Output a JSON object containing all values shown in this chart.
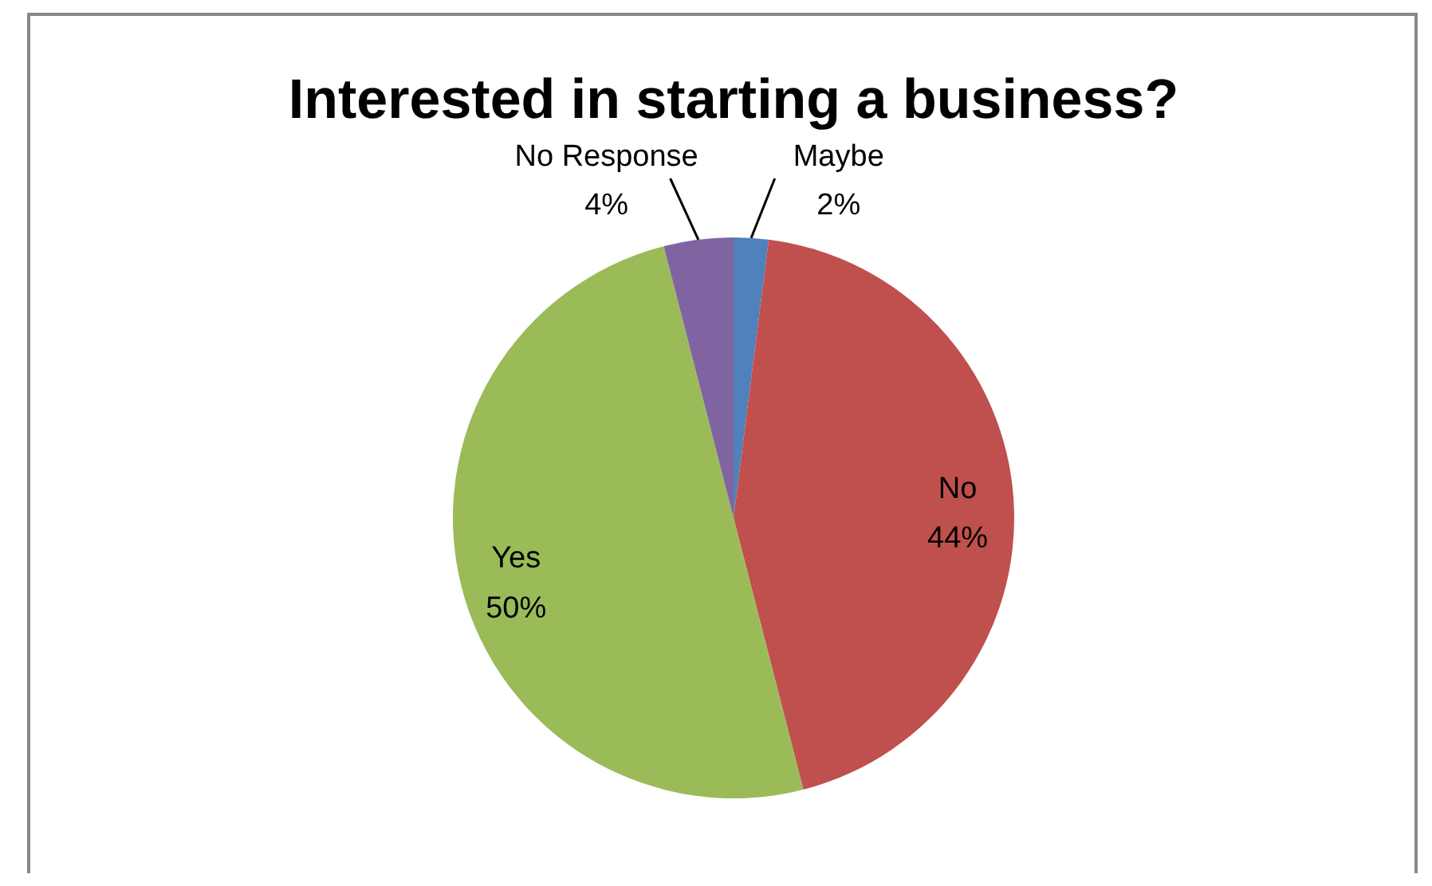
{
  "chart_data": {
    "type": "pie",
    "title": "Interested in starting a business?",
    "categories": [
      "Maybe",
      "No",
      "Yes",
      "No Response"
    ],
    "values": [
      2,
      44,
      50,
      4
    ],
    "value_labels": [
      "2%",
      "44%",
      "50%",
      "4%"
    ],
    "colors": [
      "#4f81bd",
      "#c0504d",
      "#9bbb59",
      "#8064a2"
    ]
  }
}
